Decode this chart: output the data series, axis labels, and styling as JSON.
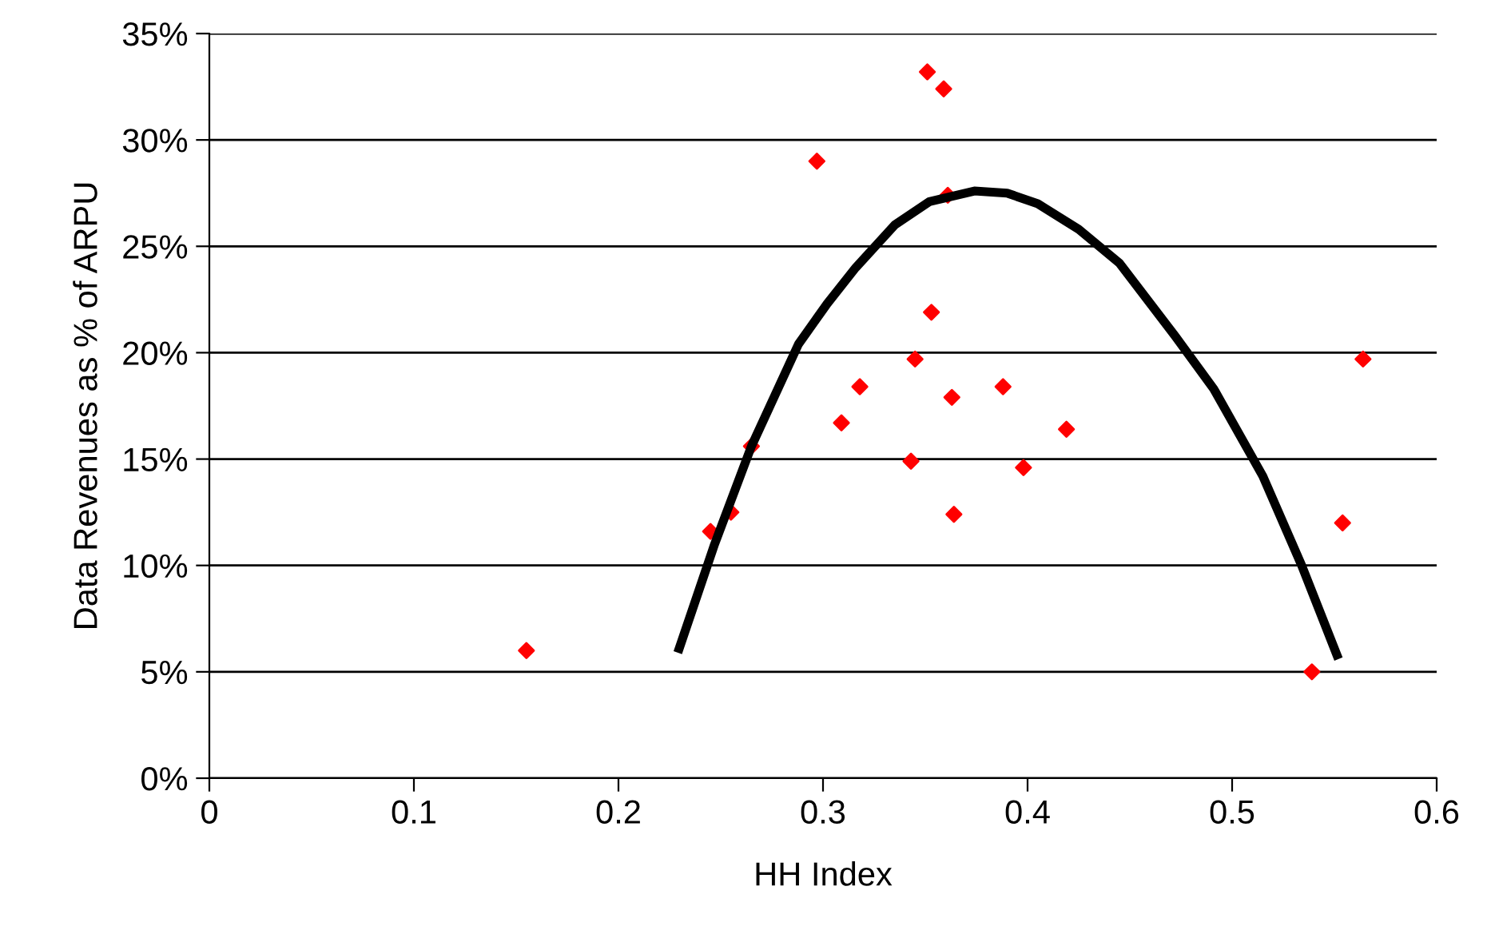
{
  "chart_data": {
    "type": "scatter",
    "xlabel": "HH Index",
    "ylabel": "Data Revenues as % of ARPU",
    "xlim": [
      0,
      0.6
    ],
    "xticks": [
      0,
      0.1,
      0.2,
      0.3,
      0.4,
      0.5,
      0.6
    ],
    "ylim": [
      0,
      35
    ],
    "yticks": [
      {
        "value": 0,
        "label": "0%"
      },
      {
        "value": 5,
        "label": "5%"
      },
      {
        "value": 10,
        "label": "10%"
      },
      {
        "value": 15,
        "label": "15%"
      },
      {
        "value": 20,
        "label": "20%"
      },
      {
        "value": 25,
        "label": "25%"
      },
      {
        "value": 30,
        "label": "30%"
      },
      {
        "value": 35,
        "label": "35%"
      }
    ],
    "grid": "y",
    "legend": false,
    "series": [
      {
        "color": "#ff0000",
        "marker": "diamond",
        "x": [
          0.155,
          0.245,
          0.255,
          0.265,
          0.297,
          0.351,
          0.359,
          0.361,
          0.353,
          0.345,
          0.318,
          0.309,
          0.343,
          0.363,
          0.364,
          0.388,
          0.398,
          0.419,
          0.539,
          0.554,
          0.564
        ],
        "values": [
          6.0,
          11.6,
          12.5,
          15.6,
          29.0,
          33.2,
          32.4,
          27.4,
          21.9,
          19.7,
          18.4,
          16.7,
          14.9,
          17.9,
          12.4,
          18.4,
          14.6,
          16.4,
          5.0,
          12.0,
          19.7
        ]
      },
      {
        "type": "line",
        "color": "#000000",
        "marker": "none",
        "line_style": "solid",
        "x": [
          0.229,
          0.247,
          0.265,
          0.288,
          0.302,
          0.316,
          0.335,
          0.352,
          0.374,
          0.39,
          0.405,
          0.425,
          0.445,
          0.472,
          0.491,
          0.515,
          0.534,
          0.552
        ],
        "values": [
          5.9,
          11.0,
          15.6,
          20.4,
          22.3,
          24.0,
          26.0,
          27.1,
          27.6,
          27.5,
          27.0,
          25.8,
          24.2,
          20.8,
          18.3,
          14.2,
          10.0,
          5.6
        ]
      }
    ]
  }
}
